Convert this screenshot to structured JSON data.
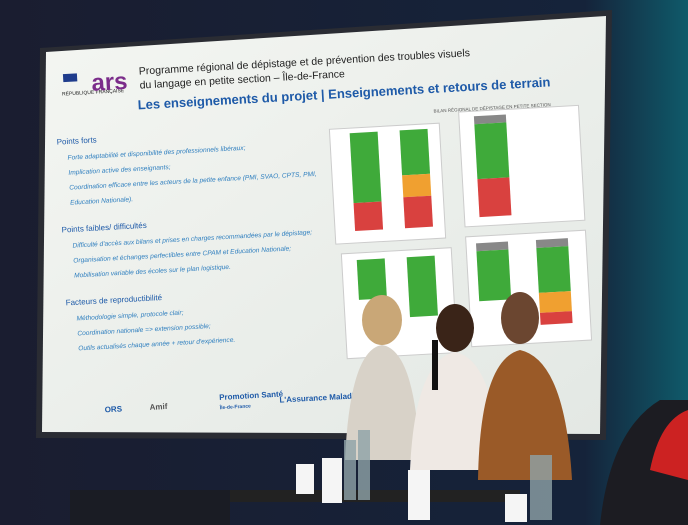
{
  "slide": {
    "header": {
      "republique": "RÉPUBLIQUE FRANÇAISE",
      "ars": "ars",
      "title_line1": "Programme régional de dépistage et de prévention des troubles visuels",
      "title_line2": "du langage en petite section – Île-de-France",
      "subtitle": "Les enseignements du projet | Enseignements et retours de terrain"
    },
    "sections": [
      {
        "heading": "Points forts",
        "items": [
          "Forte adaptabilité et disponibilité des professionnels libéraux;",
          "Implication active des enseignants;",
          "Coordination efficace entre les acteurs de la petite enfance (PMI, SVAO, CPTS, PMI,",
          "Education Nationale)."
        ]
      },
      {
        "heading": "Points faibles/ difficultés",
        "items": [
          "Difficulté d'accès aux bilans et prises en charges recommandées par le dépistage;",
          "Organisation et échanges perfectibles entre CPAM et Education Nationale;",
          "Mobilisation variable des écoles sur le plan logistique."
        ]
      },
      {
        "heading": "Facteurs de reproductibilité",
        "items": [
          "Méthodologie simple, protocole clair;",
          "Coordination nationale => extension possible;",
          "Outils actualisés chaque année + retour d'expérience."
        ]
      }
    ],
    "chart_caption": "BILAN RÉGIONAL DE DÉPISTAGE EN PETITE SECTION",
    "logos": [
      "ORS",
      "Amif",
      "Promotion Santé",
      "Île-de-France",
      "L'Assurance Maladie"
    ]
  }
}
